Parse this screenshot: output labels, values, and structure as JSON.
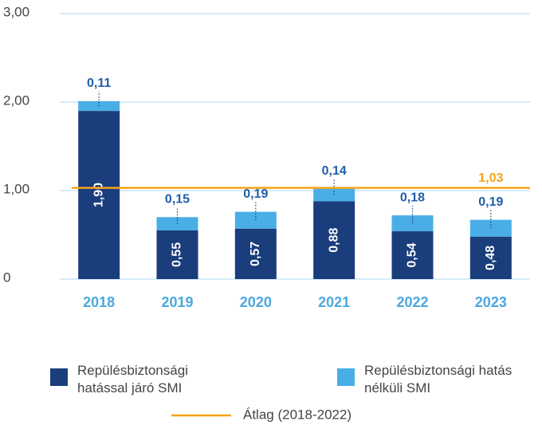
{
  "chart_data": {
    "type": "stacked_bar",
    "categories": [
      "2018",
      "2019",
      "2020",
      "2021",
      "2022",
      "2023"
    ],
    "series": [
      {
        "name": "Repülésbiztonsági hatással járó SMI",
        "color": "#1a3d7c",
        "values": [
          1.9,
          0.55,
          0.57,
          0.88,
          0.54,
          0.48
        ],
        "value_labels": [
          "1,90",
          "0,55",
          "0,57",
          "0,88",
          "0,54",
          "0,48"
        ]
      },
      {
        "name": "Repülésbiztonsági hatás nélküli SMI",
        "color": "#4aaee6",
        "values": [
          0.11,
          0.15,
          0.19,
          0.14,
          0.18,
          0.19
        ],
        "value_labels": [
          "0,11",
          "0,15",
          "0,19",
          "0,14",
          "0,18",
          "0,19"
        ]
      }
    ],
    "average": {
      "name": "Átlag (2018-2022)",
      "value": 1.03,
      "label": "1,03",
      "color": "#f5a31b"
    },
    "ylim": [
      0,
      3
    ],
    "yticks": [
      0,
      {
        "value": 1,
        "label": "1,00"
      },
      {
        "value": 2,
        "label": "2,00"
      },
      {
        "value": 3,
        "label": "3,00"
      }
    ],
    "grid": true
  }
}
